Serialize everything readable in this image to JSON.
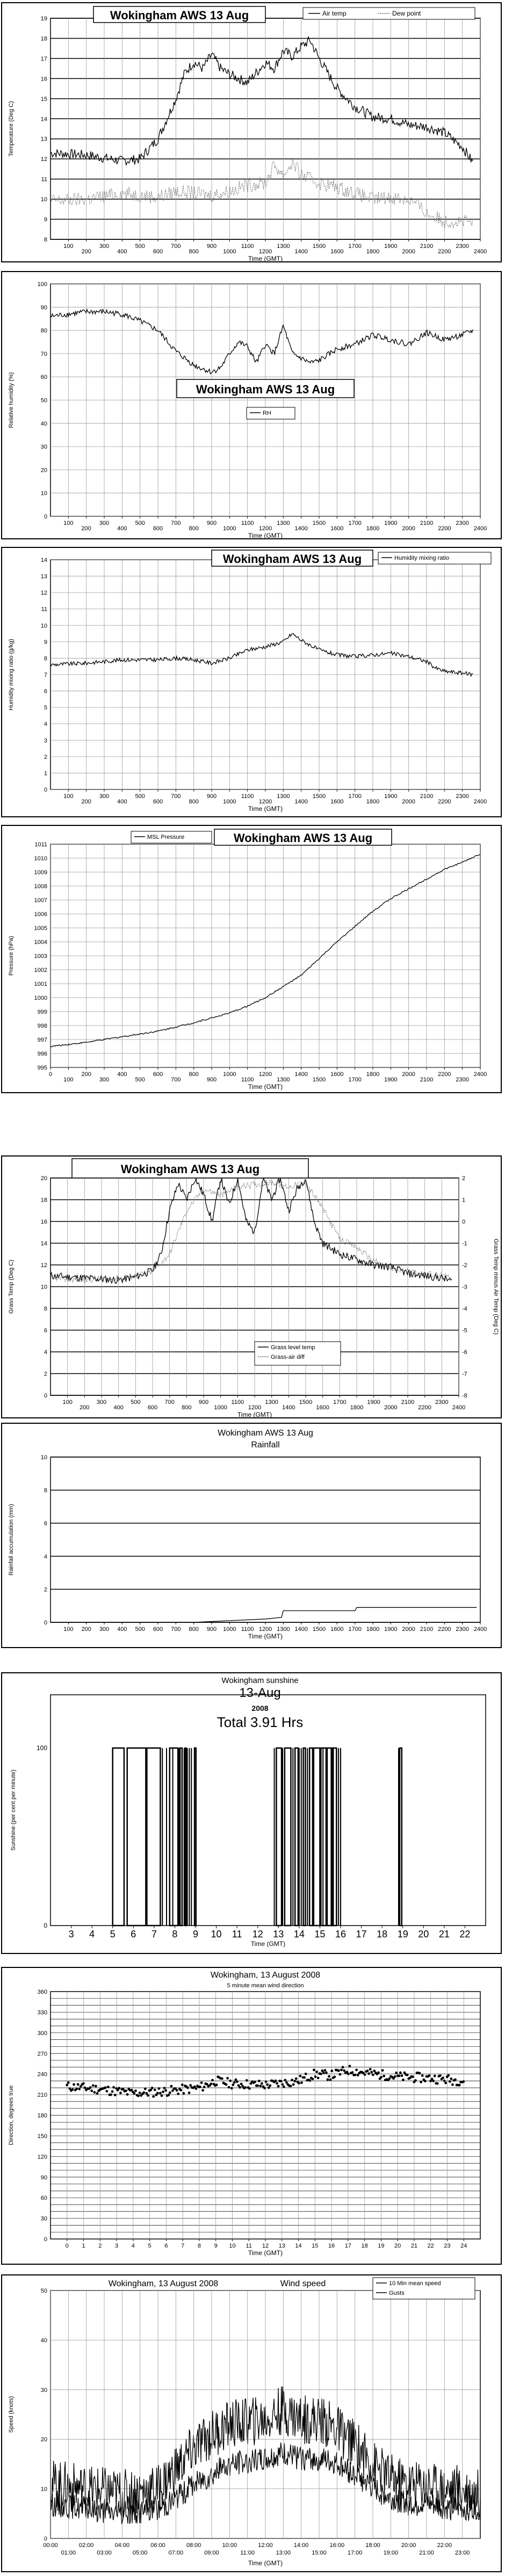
{
  "charts": [
    {
      "id": "temperature",
      "type": "line",
      "title": "Wokingham AWS 13 Aug",
      "xlabel": "Time (GMT)",
      "ylabel": "Temperature (Deg C)",
      "xlim": [
        0,
        2400
      ],
      "ylim": [
        8,
        19
      ],
      "yticks": [
        8,
        9,
        10,
        11,
        12,
        13,
        14,
        15,
        16,
        17,
        18,
        19
      ],
      "xticks": [
        100,
        200,
        300,
        400,
        500,
        600,
        700,
        800,
        900,
        1000,
        1100,
        1200,
        1300,
        1400,
        1500,
        1600,
        1700,
        1800,
        1900,
        2000,
        2100,
        2200,
        2300,
        2400
      ],
      "legend": "top-right",
      "series": [
        {
          "name": "Air temp",
          "style": "solid",
          "noise": 0.25,
          "x": [
            0,
            200,
            400,
            500,
            600,
            700,
            750,
            800,
            850,
            900,
            950,
            1000,
            1100,
            1200,
            1250,
            1300,
            1350,
            1400,
            1450,
            1500,
            1600,
            1700,
            1800,
            1900,
            2000,
            2100,
            2200,
            2300,
            2360
          ],
          "y": [
            12.3,
            12.2,
            11.9,
            12,
            13,
            15,
            16.3,
            16.8,
            16.5,
            17.2,
            16.5,
            16.2,
            15.8,
            16.8,
            16.5,
            17.4,
            17.1,
            17.6,
            17.9,
            17,
            15.5,
            14.6,
            14.1,
            14,
            13.7,
            13.6,
            13.3,
            12.6,
            11.8
          ]
        },
        {
          "name": "Dew point",
          "style": "dotted",
          "noise": 0.35,
          "x": [
            0,
            200,
            400,
            500,
            600,
            700,
            800,
            900,
            1000,
            1100,
            1200,
            1250,
            1300,
            1350,
            1400,
            1500,
            1600,
            1700,
            1800,
            1900,
            2000,
            2050,
            2100,
            2200,
            2300,
            2360
          ],
          "y": [
            9.9,
            10,
            10.3,
            10.2,
            10.1,
            10.4,
            10.3,
            10.2,
            10.4,
            10.7,
            10.8,
            11.7,
            11.2,
            11.8,
            11.2,
            10.8,
            10.6,
            10.3,
            10,
            10.1,
            10,
            9.7,
            9.3,
            8.9,
            8.9,
            8.8
          ]
        }
      ]
    },
    {
      "id": "humidity",
      "type": "line",
      "title": "Wokingham AWS 13 Aug",
      "xlabel": "Time (GMT)",
      "ylabel": "Relative humidity (%)",
      "xlim": [
        0,
        2400
      ],
      "ylim": [
        0,
        100
      ],
      "yticks": [
        0,
        10,
        20,
        30,
        40,
        50,
        60,
        70,
        80,
        90,
        100
      ],
      "xticks": [
        100,
        200,
        300,
        400,
        500,
        600,
        700,
        800,
        900,
        1000,
        1100,
        1200,
        1300,
        1400,
        1500,
        1600,
        1700,
        1800,
        1900,
        2000,
        2100,
        2200,
        2300,
        2400
      ],
      "legend": "center",
      "series": [
        {
          "name": "RH",
          "style": "solid",
          "noise": 1.2,
          "x": [
            0,
            100,
            200,
            300,
            400,
            500,
            600,
            700,
            800,
            900,
            950,
            1000,
            1050,
            1100,
            1150,
            1200,
            1250,
            1300,
            1350,
            1400,
            1450,
            1500,
            1600,
            1700,
            1800,
            1900,
            2000,
            2100,
            2200,
            2300,
            2360
          ],
          "y": [
            86,
            87,
            88,
            88,
            87,
            84,
            80,
            71,
            65,
            62,
            64,
            70,
            75,
            73,
            66,
            74,
            70,
            82,
            70,
            68,
            66,
            67,
            72,
            74,
            78,
            76,
            74,
            79,
            76,
            78,
            80
          ]
        }
      ]
    },
    {
      "id": "mixing_ratio",
      "type": "line",
      "title": "Wokingham AWS 13 Aug",
      "xlabel": "Time (GMT)",
      "ylabel": "Humidity mixing ratio (g/kg)",
      "xlim": [
        0,
        2400
      ],
      "ylim": [
        0,
        14
      ],
      "yticks": [
        0,
        1,
        2,
        3,
        4,
        5,
        6,
        7,
        8,
        9,
        10,
        11,
        12,
        13,
        14
      ],
      "xticks": [
        100,
        200,
        300,
        400,
        500,
        600,
        700,
        800,
        900,
        1000,
        1100,
        1200,
        1300,
        1400,
        1500,
        1600,
        1700,
        1800,
        1900,
        2000,
        2100,
        2200,
        2300,
        2400
      ],
      "legend": "top-right",
      "series": [
        {
          "name": "Humidity mixing ratio",
          "style": "solid",
          "noise": 0.12,
          "x": [
            0,
            200,
            400,
            600,
            700,
            800,
            900,
            1000,
            1100,
            1200,
            1300,
            1350,
            1400,
            1500,
            1600,
            1700,
            1800,
            1900,
            2000,
            2100,
            2150,
            2200,
            2300,
            2360
          ],
          "y": [
            7.6,
            7.7,
            7.9,
            7.9,
            8,
            7.9,
            7.7,
            8,
            8.5,
            8.7,
            9,
            9.5,
            9.1,
            8.5,
            8.2,
            8.1,
            8.2,
            8.3,
            8.1,
            7.8,
            7.4,
            7.2,
            7.1,
            7.0
          ]
        }
      ]
    },
    {
      "id": "pressure",
      "type": "line",
      "title": "Wokingham AWS 13 Aug",
      "xlabel": "Time (GMT)",
      "ylabel": "Pressure (hPa)",
      "xlim": [
        0,
        2400
      ],
      "ylim": [
        995,
        1011
      ],
      "yticks": [
        995,
        996,
        997,
        998,
        999,
        1000,
        1001,
        1002,
        1003,
        1004,
        1005,
        1006,
        1007,
        1008,
        1009,
        1010,
        1011
      ],
      "xticks": [
        0,
        100,
        200,
        300,
        400,
        500,
        600,
        700,
        800,
        900,
        1000,
        1100,
        1200,
        1300,
        1400,
        1500,
        1600,
        1700,
        1800,
        1900,
        2000,
        2100,
        2200,
        2300,
        2400
      ],
      "legend": "top-left",
      "series": [
        {
          "name": "MSL Pressure",
          "style": "solid",
          "noise": 0.05,
          "x": [
            0,
            200,
            400,
            600,
            800,
            1000,
            1100,
            1200,
            1300,
            1400,
            1500,
            1600,
            1700,
            1800,
            1900,
            2000,
            2100,
            2200,
            2300,
            2400
          ],
          "y": [
            996.5,
            996.8,
            997.2,
            997.6,
            998.2,
            998.9,
            999.4,
            1000,
            1000.8,
            1001.6,
            1002.8,
            1004,
            1005.1,
            1006.2,
            1007.1,
            1007.8,
            1008.5,
            1009.2,
            1009.7,
            1010.3
          ]
        }
      ]
    },
    {
      "id": "grass",
      "type": "line",
      "title": "Wokingham AWS 13 Aug",
      "xlabel": "Time (GMT)",
      "ylabel": "Grass Temp (Deg C)",
      "y2label": "Grass Temp minus Air Temp (Deg C)",
      "xlim": [
        0,
        2400
      ],
      "ylim": [
        0,
        20
      ],
      "y2lim": [
        -8,
        2
      ],
      "yticks": [
        0,
        2,
        4,
        6,
        8,
        10,
        12,
        14,
        16,
        18,
        20
      ],
      "y2ticks": [
        -8,
        -7,
        -6,
        -5,
        -4,
        -3,
        -2,
        -1,
        0,
        1,
        2
      ],
      "xticks": [
        100,
        200,
        300,
        400,
        500,
        600,
        700,
        800,
        900,
        1000,
        1100,
        1200,
        1300,
        1400,
        1500,
        1600,
        1700,
        1800,
        1900,
        2000,
        2100,
        2200,
        2300,
        2400
      ],
      "legend": "bottom-right",
      "series": [
        {
          "name": "Grass level temp",
          "style": "solid",
          "noise": 0.35,
          "x": [
            0,
            200,
            400,
            500,
            600,
            650,
            700,
            750,
            800,
            850,
            900,
            950,
            1000,
            1050,
            1100,
            1150,
            1200,
            1250,
            1300,
            1350,
            1400,
            1450,
            1500,
            1550,
            1600,
            1700,
            1800,
            1900,
            2000,
            2100,
            2200,
            2300,
            2360
          ],
          "y": [
            11,
            10.8,
            10.6,
            10.9,
            11.5,
            13,
            17,
            19.5,
            18,
            20,
            18.5,
            16,
            20,
            17.5,
            20,
            16,
            15,
            20,
            18,
            20,
            17,
            19,
            20,
            16,
            14,
            13,
            12.5,
            12,
            11.8,
            11.2,
            11,
            10.8,
            10.5
          ]
        },
        {
          "name": "Grass-air diff",
          "style": "dotted",
          "axis": "y2",
          "noise": 0.15,
          "x": [
            0,
            200,
            400,
            500,
            600,
            700,
            800,
            900,
            1000,
            1100,
            1200,
            1300,
            1400,
            1500,
            1600,
            1700,
            1800,
            1900,
            2000,
            2100,
            2200,
            2300,
            2360
          ],
          "y": [
            -2.6,
            -2.7,
            -2.6,
            -2.5,
            -2.3,
            -1.5,
            0.5,
            1.5,
            1.2,
            1.6,
            1.7,
            1.8,
            1.6,
            1.8,
            0.6,
            -0.8,
            -1.2,
            -1.8,
            -2.2,
            -2.3,
            -2.4,
            -2.5,
            -2.6
          ]
        }
      ]
    },
    {
      "id": "rainfall",
      "type": "line",
      "title": "Wokingham AWS 13 Aug",
      "subtitle": "Rainfall",
      "xlabel": "Time (GMT)",
      "ylabel": "Rainfall accumulation (mm)",
      "xlim": [
        0,
        2400
      ],
      "ylim": [
        0,
        10
      ],
      "yticks": [
        0,
        2,
        4,
        6,
        8,
        10
      ],
      "xticks": [
        100,
        200,
        300,
        400,
        500,
        600,
        700,
        800,
        900,
        1000,
        1100,
        1200,
        1300,
        1400,
        1500,
        1600,
        1700,
        1800,
        1900,
        2000,
        2100,
        2200,
        2300,
        2400
      ],
      "legend": "none",
      "series": [
        {
          "name": "Rainfall",
          "style": "solid",
          "noise": 0,
          "x": [
            0,
            800,
            1000,
            1200,
            1290,
            1300,
            1700,
            1710,
            2380
          ],
          "y": [
            0,
            0,
            0.1,
            0.2,
            0.3,
            0.7,
            0.7,
            0.9,
            0.9
          ]
        }
      ]
    },
    {
      "id": "sunshine",
      "type": "bar",
      "title": "Wokingham sunshine",
      "title2": "13-Aug",
      "year": "2008",
      "total": "Total 3.91 Hrs",
      "xlabel": "Time (GMT)",
      "ylabel": "Sunshine (per cent per minute)",
      "xlim": [
        2,
        23
      ],
      "ylim": [
        0,
        130
      ],
      "xticks": [
        3,
        4,
        5,
        6,
        7,
        8,
        9,
        10,
        11,
        12,
        13,
        14,
        15,
        16,
        17,
        18,
        19,
        20,
        21,
        22
      ],
      "yticks": [
        0,
        100
      ],
      "legend": "none",
      "sun_blocks": [
        [
          5.0,
          5.55
        ],
        [
          5.7,
          6.6
        ],
        [
          6.65,
          7.3
        ],
        [
          7.75,
          8.15
        ],
        [
          8.25,
          8.35
        ],
        [
          8.5,
          8.55
        ],
        [
          8.95,
          9.02
        ],
        [
          12.9,
          13.15
        ],
        [
          13.3,
          13.6
        ],
        [
          13.8,
          13.95
        ],
        [
          14.2,
          14.3
        ],
        [
          14.5,
          14.65
        ],
        [
          14.7,
          15.0
        ],
        [
          15.05,
          15.3
        ],
        [
          15.35,
          15.55
        ],
        [
          15.6,
          15.8
        ],
        [
          18.85,
          18.95
        ]
      ],
      "sun_lines": [
        7.4,
        7.6,
        7.9,
        8.2,
        8.45,
        8.6,
        8.7,
        8.8,
        12.8,
        13.2,
        13.7,
        14.0,
        14.1,
        14.4,
        15.15,
        15.65,
        15.9,
        16.0,
        18.8
      ]
    },
    {
      "id": "wind_direction",
      "type": "scatter",
      "title": "Wokingham,  13 August 2008",
      "subtitle": "5 minute mean wind direction",
      "xlabel": "Time (GMT)",
      "ylabel": "Direction, degrees true",
      "xlim": [
        -1,
        25
      ],
      "ylim": [
        0,
        360
      ],
      "yticks": [
        0,
        10,
        20,
        30,
        40,
        50,
        60,
        70,
        80,
        90,
        100,
        110,
        120,
        130,
        140,
        150,
        160,
        170,
        180,
        190,
        200,
        210,
        220,
        230,
        240,
        250,
        260,
        270,
        280,
        290,
        300,
        310,
        320,
        330,
        340,
        350,
        360
      ],
      "ylabeled": [
        0,
        30,
        60,
        90,
        120,
        150,
        180,
        210,
        240,
        270,
        300,
        330,
        360
      ],
      "xticks": [
        0,
        1,
        2,
        3,
        4,
        5,
        6,
        7,
        8,
        9,
        10,
        11,
        12,
        13,
        14,
        15,
        16,
        17,
        18,
        19,
        20,
        21,
        22,
        23,
        24
      ],
      "legend": "none",
      "series": [
        {
          "name": "",
          "x": [
            0,
            2,
            4,
            6,
            8,
            9,
            10,
            12,
            14,
            15,
            16,
            17,
            18,
            20,
            22,
            24
          ],
          "y": [
            222,
            218,
            212,
            215,
            220,
            230,
            226,
            224,
            230,
            240,
            238,
            246,
            242,
            236,
            234,
            230
          ],
          "noise": 7
        }
      ]
    },
    {
      "id": "wind_speed",
      "type": "line",
      "title": "Wokingham,  13 August 2008",
      "subtitle": "Wind speed",
      "xlabel": "Time (GMT)",
      "ylabel": "Speed (knots)",
      "xlim": [
        0,
        24
      ],
      "ylim": [
        0,
        50
      ],
      "yticks": [
        0,
        10,
        20,
        30,
        40,
        50
      ],
      "xticks_top": [
        "00:00",
        "02:00",
        "04:00",
        "06:00",
        "08:00",
        "10:00",
        "12:00",
        "14:00",
        "16:00",
        "18:00",
        "20:00",
        "22:00"
      ],
      "xticks_bottom": [
        "01:00",
        "03:00",
        "05:00",
        "07:00",
        "09:00",
        "11:00",
        "13:00",
        "15:00",
        "17:00",
        "19:00",
        "21:00",
        "23:00"
      ],
      "legend": "top-right",
      "series": [
        {
          "name": "10 Min mean speed",
          "style": "solid",
          "noise": 2.5,
          "x": [
            0,
            2,
            4,
            6,
            7,
            8,
            9,
            10,
            12,
            13,
            14,
            15,
            16,
            17,
            18,
            19,
            20,
            21,
            22,
            23,
            24
          ],
          "y": [
            7,
            6,
            5,
            6,
            8,
            11,
            13,
            15,
            16,
            17,
            16,
            16,
            15,
            13,
            10,
            8,
            7,
            7,
            6,
            6,
            6
          ]
        },
        {
          "name": "Gusts",
          "style": "solid",
          "noise": 5,
          "x": [
            0,
            2,
            4,
            6,
            7,
            8,
            9,
            10,
            12,
            13,
            14,
            15,
            16,
            17,
            18,
            19,
            20,
            21,
            22,
            23,
            24
          ],
          "y": [
            11,
            10,
            9,
            10,
            14,
            18,
            21,
            23,
            24,
            26,
            24,
            24,
            22,
            19,
            15,
            12,
            11,
            11,
            10,
            10,
            9
          ]
        }
      ]
    }
  ]
}
